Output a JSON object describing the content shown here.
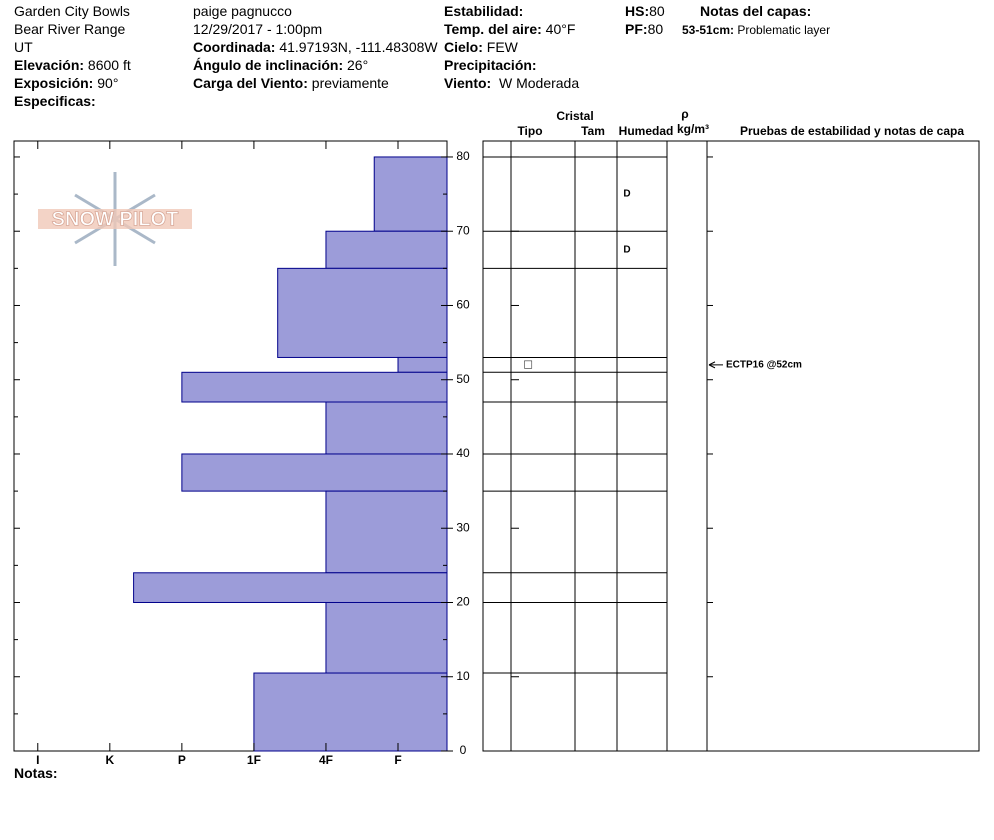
{
  "header": {
    "location": "Garden City Bowls",
    "range": "Bear River Range",
    "state": "UT",
    "elevation_label": "Elevación:",
    "elevation": "8600 ft",
    "aspect_label": "Exposición:",
    "aspect": "90°",
    "specifics_label": "Especificas:",
    "observer": "paige pagnucco",
    "datetime": "12/29/2017 - 1:00pm",
    "coord_label": "Coordinada:",
    "coord": "41.97193N, -111.48308W",
    "incline_label": "Ángulo de inclinación:",
    "incline": "26°",
    "wind_load_label": "Carga del Viento:",
    "wind_load": "previamente",
    "stability_label": "Estabilidad:",
    "air_temp_label": "Temp. del aire:",
    "air_temp": "40°F",
    "sky_label": "Cielo:",
    "sky": "FEW",
    "precip_label": "Precipitación:",
    "wind_label": "Viento:",
    "wind": "W Moderada",
    "hs_label": "HS:",
    "hs": 80,
    "pf_label": "PF:",
    "pf": 80,
    "layer_notes_label": "Notas del capas:",
    "layer_note_range": "53-51cm:",
    "layer_note": "Problematic layer"
  },
  "logo": "SNOW PILOT",
  "chart_data": {
    "type": "snow-profile",
    "layer_tops": [
      80,
      70,
      65,
      53,
      51,
      47,
      40,
      35,
      24,
      20,
      10.5
    ],
    "layer_bottoms": [
      70,
      65,
      53,
      51,
      47,
      40,
      35,
      24,
      20,
      10.5,
      0
    ],
    "hardness": [
      1.33,
      2,
      2.67,
      1,
      4,
      2,
      4,
      2,
      4.67,
      2,
      3
    ],
    "color": "#9c9cd9",
    "edge_color": "#00008b",
    "xlim": [
      6.33,
      0.32
    ],
    "xticks": [
      {
        "value": 6,
        "label": "I"
      },
      {
        "value": 5,
        "label": "K"
      },
      {
        "value": 4,
        "label": "P"
      },
      {
        "value": 3,
        "label": "1F"
      },
      {
        "value": 2,
        "label": "4F"
      },
      {
        "value": 1,
        "label": "F"
      }
    ],
    "ylim": [
      0,
      82.15
    ],
    "yticks": [
      0,
      10,
      20,
      30,
      40,
      50,
      60,
      70,
      80
    ],
    "table_headers": {
      "crystal": "Cristal",
      "type": "Tipo",
      "size": "Tam",
      "moisture": "Humedad",
      "rho": "ρ",
      "density_unit": "kg/m³",
      "tests": "Pruebas de estabilidad y notas de capa"
    },
    "grain": [
      null,
      null,
      null,
      "□",
      null,
      null,
      null,
      null,
      null,
      null,
      null
    ],
    "moisture": [
      "D",
      "D",
      null,
      null,
      null,
      null,
      null,
      null,
      null,
      null,
      null
    ],
    "stability_tests": [
      {
        "height": 52,
        "label": "ECTP16 @52cm"
      }
    ]
  },
  "notes_label": "Notas:"
}
